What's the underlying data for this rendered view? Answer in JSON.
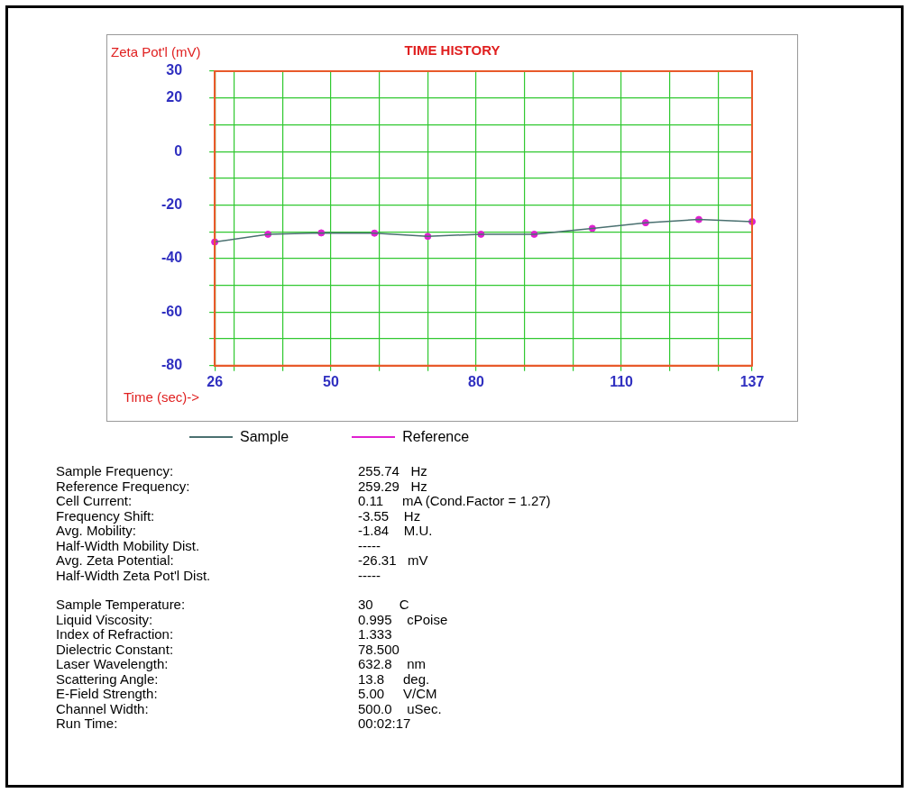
{
  "chart_data": {
    "type": "line",
    "title": "TIME HISTORY",
    "xlabel": "Time (sec)->",
    "ylabel": "Zeta Pot'l (mV)",
    "xlim": [
      26,
      137
    ],
    "xticks": [
      26,
      {
        "value": 30,
        "label": null
      },
      {
        "value": 40,
        "label": null
      },
      50,
      {
        "value": 60,
        "label": null
      },
      {
        "value": 70,
        "label": null
      },
      80,
      {
        "value": 90,
        "label": null
      },
      {
        "value": 100,
        "label": null
      },
      110,
      {
        "value": 120,
        "label": null
      },
      {
        "value": 130,
        "label": null
      },
      137
    ],
    "ylim": [
      -80,
      30
    ],
    "yticks": [
      -80,
      {
        "value": -70,
        "label": null
      },
      -60,
      {
        "value": -50,
        "label": null
      },
      -40,
      {
        "value": -30,
        "label": null
      },
      -20,
      {
        "value": -10,
        "label": null
      },
      0,
      {
        "value": 10,
        "label": null
      },
      20,
      30
    ],
    "grid": true,
    "legend": "bottom",
    "line_style": "solid",
    "x": [
      26,
      37,
      48,
      59,
      70,
      81,
      92,
      104,
      115,
      126,
      137
    ],
    "series": [
      {
        "name": "Sample",
        "marker": "none",
        "color": "#4a7070",
        "values": [
          -33.8,
          -30.9,
          -30.4,
          -30.5,
          -31.7,
          -30.9,
          -30.9,
          -28.7,
          -26.6,
          -25.4,
          -26.2
        ]
      },
      {
        "name": "Reference",
        "type": "scatter",
        "marker": "circle",
        "color": "#e020d0",
        "values": [
          -33.8,
          -30.9,
          -30.4,
          -30.5,
          -31.7,
          -30.9,
          -30.9,
          -28.7,
          -26.6,
          -25.4,
          -26.2
        ]
      }
    ],
    "annotations": [
      "Sample Frequency:",
      "255.74   Hz",
      "Reference Frequency:",
      "259.29   Hz",
      "Cell Current:",
      "0.11     mA (Cond.Factor = 1.27)",
      "Frequency Shift:",
      "-3.55    Hz",
      "Avg. Mobility:",
      "-1.84    M.U.",
      "Half-Width Mobility Dist.",
      "-----",
      "Avg. Zeta Potential:",
      "-26.31   mV",
      "Half-Width Zeta Pot'l Dist.",
      "-----",
      "Sample Temperature:",
      "30       C",
      "Liquid Viscosity:",
      "0.995    cPoise",
      "Index of Refraction:",
      "1.333",
      "Dielectric Constant:",
      "78.500",
      "Laser Wavelength:",
      "632.8    nm",
      "Scattering Angle:",
      "13.8     deg.",
      "E-Field Strength:",
      "5.00     V/CM",
      "Channel Width:",
      "500.0    uSec.",
      "Run Time:",
      "00:02:17"
    ]
  }
}
